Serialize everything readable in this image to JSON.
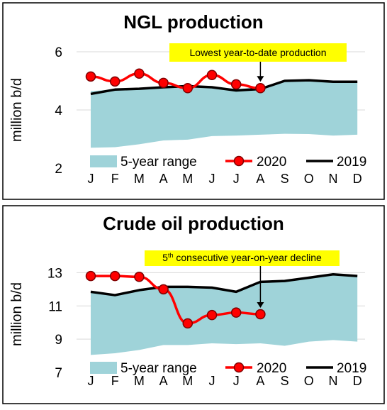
{
  "chart_data": [
    {
      "type": "area",
      "title": "NGL production",
      "ylabel": "million b/d",
      "ylim": [
        2,
        6
      ],
      "yticks": [
        2,
        4,
        6
      ],
      "categories": [
        "J",
        "F",
        "M",
        "A",
        "M",
        "J",
        "J",
        "A",
        "S",
        "O",
        "N",
        "D"
      ],
      "range": {
        "name": "5-year range",
        "low": [
          2.7,
          2.72,
          2.82,
          2.95,
          2.98,
          3.1,
          3.12,
          3.15,
          3.18,
          3.17,
          3.12,
          3.15
        ],
        "high": [
          4.65,
          4.7,
          4.75,
          4.8,
          4.85,
          4.8,
          4.72,
          4.78,
          4.98,
          5.0,
          4.97,
          4.97
        ]
      },
      "series": [
        {
          "name": "2020",
          "values": [
            5.15,
            4.98,
            5.25,
            4.93,
            4.75,
            5.2,
            4.88,
            4.75,
            null,
            null,
            null,
            null
          ]
        },
        {
          "name": "2019",
          "values": [
            4.55,
            4.7,
            4.73,
            4.78,
            4.82,
            4.78,
            4.67,
            4.72,
            5.0,
            5.02,
            4.97,
            4.97
          ]
        }
      ],
      "annotation": {
        "text": "Lowest year-to-date production",
        "category_index": 7
      },
      "legend": "bottom",
      "colors": {
        "range": "#9fd3d9",
        "2020": "#ff0000",
        "2019": "#000000",
        "annotation": "#ffff00"
      }
    },
    {
      "type": "area",
      "title": "Crude oil production",
      "ylabel": "million b/d",
      "ylim": [
        7,
        14
      ],
      "yticks": [
        7,
        9,
        11,
        13
      ],
      "categories": [
        "J",
        "F",
        "M",
        "A",
        "M",
        "J",
        "J",
        "A",
        "S",
        "O",
        "N",
        "D"
      ],
      "range": {
        "name": "5-year range",
        "low": [
          8.05,
          8.15,
          8.35,
          8.65,
          8.65,
          8.75,
          8.7,
          8.75,
          8.6,
          8.85,
          8.95,
          8.85
        ],
        "high": [
          11.85,
          11.65,
          11.95,
          12.15,
          12.15,
          12.1,
          11.85,
          12.45,
          12.5,
          12.75,
          12.95,
          12.85
        ]
      },
      "series": [
        {
          "name": "2020",
          "values": [
            12.8,
            12.8,
            12.75,
            12.0,
            9.95,
            10.45,
            10.6,
            10.5,
            null,
            null,
            null,
            null
          ]
        },
        {
          "name": "2019",
          "values": [
            11.85,
            11.65,
            11.95,
            12.15,
            12.15,
            12.1,
            11.85,
            12.45,
            12.5,
            12.7,
            12.9,
            12.8
          ]
        }
      ],
      "annotation": {
        "text_main": "5",
        "text_sup": "th",
        "text_rest": " consecutive year-on-year decline",
        "category_index": 7
      },
      "legend": "bottom",
      "colors": {
        "range": "#9fd3d9",
        "2020": "#ff0000",
        "2019": "#000000",
        "annotation": "#ffff00"
      }
    }
  ]
}
